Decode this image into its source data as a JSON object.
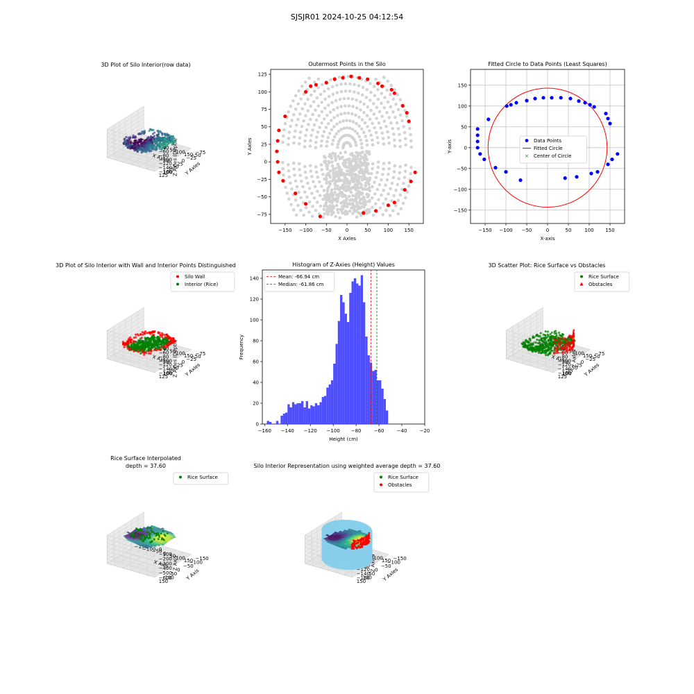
{
  "figure": {
    "suptitle": "SJSJR01 2024-10-25 04:12:54"
  },
  "chart_data": [
    {
      "type": "scatter3d",
      "title": "3D Plot of Silo Interior(row data)",
      "xlabel": "X Axles",
      "ylabel": "Y Axles",
      "zlabel": "Z Axles (Depth)",
      "x_ticks": [
        "−150",
        "−100",
        "−50",
        "0",
        "50",
        "100",
        "150"
      ],
      "y_ticks": [
        "−75",
        "−50",
        "−25",
        "0",
        "25",
        "50",
        "75",
        "100",
        "125"
      ],
      "z_ticks": [
        "−20",
        "−40",
        "−60",
        "−80",
        "−100",
        "−120",
        "−140",
        "−160"
      ],
      "colormap": "viridis",
      "grid": true
    },
    {
      "type": "scatter",
      "title": "Outermost Points in the Silo",
      "xlabel": "X Axles",
      "ylabel": "Y Axles",
      "xlim": [
        -185,
        185
      ],
      "ylim": [
        -88,
        132
      ],
      "x_ticks": [
        -150,
        -100,
        -50,
        0,
        50,
        100,
        150
      ],
      "y_ticks": [
        -75,
        -50,
        -25,
        0,
        25,
        50,
        75,
        100,
        125
      ],
      "grid": false,
      "colors": {
        "all_points": "#d3d3d3",
        "outermost": "#ff0000"
      },
      "outermost_points": [
        [
          -165,
          45
        ],
        [
          -168,
          30
        ],
        [
          -170,
          15
        ],
        [
          -168,
          0
        ],
        [
          -165,
          -15
        ],
        [
          -155,
          -27
        ],
        [
          -150,
          65
        ],
        [
          -125,
          -45
        ],
        [
          -100,
          -60
        ],
        [
          -100,
          100
        ],
        [
          -88,
          108
        ],
        [
          -75,
          110
        ],
        [
          -65,
          -78
        ],
        [
          -50,
          113
        ],
        [
          -30,
          118
        ],
        [
          -10,
          120
        ],
        [
          10,
          122
        ],
        [
          30,
          120
        ],
        [
          40,
          -73
        ],
        [
          50,
          118
        ],
        [
          70,
          -70
        ],
        [
          75,
          112
        ],
        [
          85,
          108
        ],
        [
          100,
          -62
        ],
        [
          108,
          103
        ],
        [
          115,
          -58
        ],
        [
          115,
          98
        ],
        [
          135,
          80
        ],
        [
          140,
          -40
        ],
        [
          145,
          70
        ],
        [
          150,
          58
        ],
        [
          155,
          -28
        ],
        [
          165,
          -15
        ]
      ]
    },
    {
      "type": "scatter",
      "title": "Fitted Circle to Data Points (Least Squares)",
      "xlabel": "X-axis",
      "ylabel": "Y-axis",
      "xlim": [
        -185,
        185
      ],
      "ylim": [
        -182,
        188
      ],
      "x_ticks": [
        -150,
        -100,
        -50,
        0,
        50,
        100,
        150
      ],
      "y_ticks": [
        -150,
        -100,
        -50,
        0,
        50,
        100,
        150
      ],
      "grid": true,
      "legend": {
        "position": "center",
        "entries": [
          "Data Points",
          "Fitted Circle",
          "Center of Circle"
        ]
      },
      "circle": {
        "center": [
          0,
          0
        ],
        "radius": 143
      },
      "colors": {
        "points": "#0000ff",
        "circle": "#ff0000",
        "center": "#008000"
      },
      "points": [
        [
          -168,
          45
        ],
        [
          -168,
          30
        ],
        [
          -168,
          15
        ],
        [
          -168,
          0
        ],
        [
          -162,
          -15
        ],
        [
          -152,
          -28
        ],
        [
          -142,
          68
        ],
        [
          -125,
          -48
        ],
        [
          -100,
          -58
        ],
        [
          -98,
          100
        ],
        [
          -88,
          103
        ],
        [
          -75,
          108
        ],
        [
          -65,
          -78
        ],
        [
          -50,
          113
        ],
        [
          -30,
          118
        ],
        [
          -10,
          120
        ],
        [
          10,
          120
        ],
        [
          32,
          120
        ],
        [
          42,
          -73
        ],
        [
          55,
          118
        ],
        [
          70,
          -70
        ],
        [
          75,
          112
        ],
        [
          90,
          108
        ],
        [
          102,
          103
        ],
        [
          105,
          -62
        ],
        [
          112,
          98
        ],
        [
          120,
          -58
        ],
        [
          140,
          82
        ],
        [
          145,
          -40
        ],
        [
          145,
          70
        ],
        [
          150,
          58
        ],
        [
          155,
          -28
        ],
        [
          168,
          -15
        ]
      ]
    },
    {
      "type": "scatter3d",
      "title": "3D Plot of Silo Interior with Wall and Interior Points Distinguished",
      "xlabel": "X Axles",
      "ylabel": "Y Axles",
      "zlabel": "Z Axles (Depth)",
      "x_ticks": [
        "−150",
        "−100",
        "−50",
        "0",
        "50",
        "100",
        "150"
      ],
      "y_ticks": [
        "−75",
        "−50",
        "−25",
        "0",
        "25",
        "50",
        "75",
        "100",
        "125"
      ],
      "z_ticks": [
        "−20",
        "−40",
        "−60",
        "−80",
        "−100",
        "−120",
        "−140",
        "−160"
      ],
      "legend": {
        "position": "upper-right",
        "entries": [
          "Silo Wall",
          "Interior (Rice)"
        ]
      },
      "colors": {
        "wall": "#ff0000",
        "interior": "#008000"
      },
      "grid": true
    },
    {
      "type": "bar",
      "title": "Histogram of Z-Axies (Height) Values",
      "xlabel": "Height (cm)",
      "ylabel": "Frequency",
      "xlim": [
        -162,
        -20
      ],
      "ylim": [
        0,
        148
      ],
      "x_ticks": [
        -160,
        -140,
        -120,
        -100,
        -80,
        -60,
        -40,
        -20
      ],
      "y_ticks": [
        0,
        20,
        40,
        60,
        80,
        100,
        120,
        140
      ],
      "bin_start": -158,
      "bin_width": 2,
      "values": [
        3,
        2,
        0,
        0,
        3,
        0,
        8,
        10,
        11,
        19,
        16,
        21,
        19,
        20,
        20,
        22,
        16,
        22,
        15,
        18,
        17,
        20,
        18,
        21,
        26,
        27,
        35,
        38,
        42,
        58,
        77,
        99,
        124,
        117,
        106,
        98,
        126,
        137,
        140,
        135,
        133,
        143,
        117,
        84,
        66,
        59,
        51,
        52,
        42,
        42,
        34,
        24,
        13
      ],
      "legend": {
        "position": "upper-left",
        "entries": [
          "Mean: -66.94 cm",
          "Median: -61.86 cm"
        ]
      },
      "mean": -66.94,
      "median": -61.86,
      "colors": {
        "bars": "#4444ff",
        "mean": "#ff0000",
        "median": "#008000"
      }
    },
    {
      "type": "scatter3d",
      "title": "3D Scatter Plot: Rice Surface vs Obstacles",
      "xlabel": "X Axles",
      "ylabel": "Y Axles",
      "zlabel": "Z Axles",
      "x_ticks": [
        "−150",
        "−100",
        "−50",
        "0",
        "50",
        "100",
        "150"
      ],
      "y_ticks": [
        "−75",
        "−50",
        "−25",
        "0",
        "25",
        "50",
        "75",
        "100",
        "125"
      ],
      "z_ticks": [
        "−20",
        "−40",
        "−60",
        "−80",
        "−100",
        "−120",
        "−140",
        "−160"
      ],
      "legend": {
        "position": "upper-right",
        "entries": [
          "Rice Surface",
          "Obstacles"
        ]
      },
      "colors": {
        "rice": "#008000",
        "obstacles": "#ff0000"
      },
      "grid": true
    },
    {
      "type": "surface3d",
      "title": "Rice Surface Interpolated",
      "subtitle": "depth = 37.60",
      "xlabel": "X Axis",
      "ylabel": "Y Axis",
      "zlabel": "Z Axis",
      "x_ticks": [
        "−150",
        "−100",
        "−50",
        "0",
        "50",
        "100",
        "150"
      ],
      "y_ticks": [
        "−150",
        "−100",
        "−50",
        "0",
        "50",
        "100",
        "150"
      ],
      "z_ticks": [
        "0",
        "−100",
        "−200",
        "−300",
        "−400",
        "−500",
        "−600"
      ],
      "legend": {
        "position": "upper-right",
        "entries": [
          "Rice Surface"
        ]
      },
      "colors": {
        "rice": "#008000"
      },
      "grid": true
    },
    {
      "type": "surface3d",
      "title": "Silo Interior Representation using weighted average depth = 37.60",
      "xlabel": "X Axles",
      "ylabel": "Y Axles",
      "zlabel": "Z Axles",
      "x_ticks": [
        "−150",
        "−100",
        "−50",
        "0",
        "50",
        "100",
        "150"
      ],
      "y_ticks": [
        "−150",
        "−100",
        "−50",
        "0",
        "50",
        "100",
        "150"
      ],
      "z_ticks": [
        "−20",
        "−40",
        "−60",
        "−80",
        "−100",
        "−120",
        "−140",
        "−160"
      ],
      "legend": {
        "position": "upper-right",
        "entries": [
          "Rice Surface",
          "Obstacles"
        ]
      },
      "colors": {
        "rice": "#008000",
        "obstacles": "#ff0000",
        "silo": "#87ceeb"
      },
      "grid": true
    }
  ]
}
